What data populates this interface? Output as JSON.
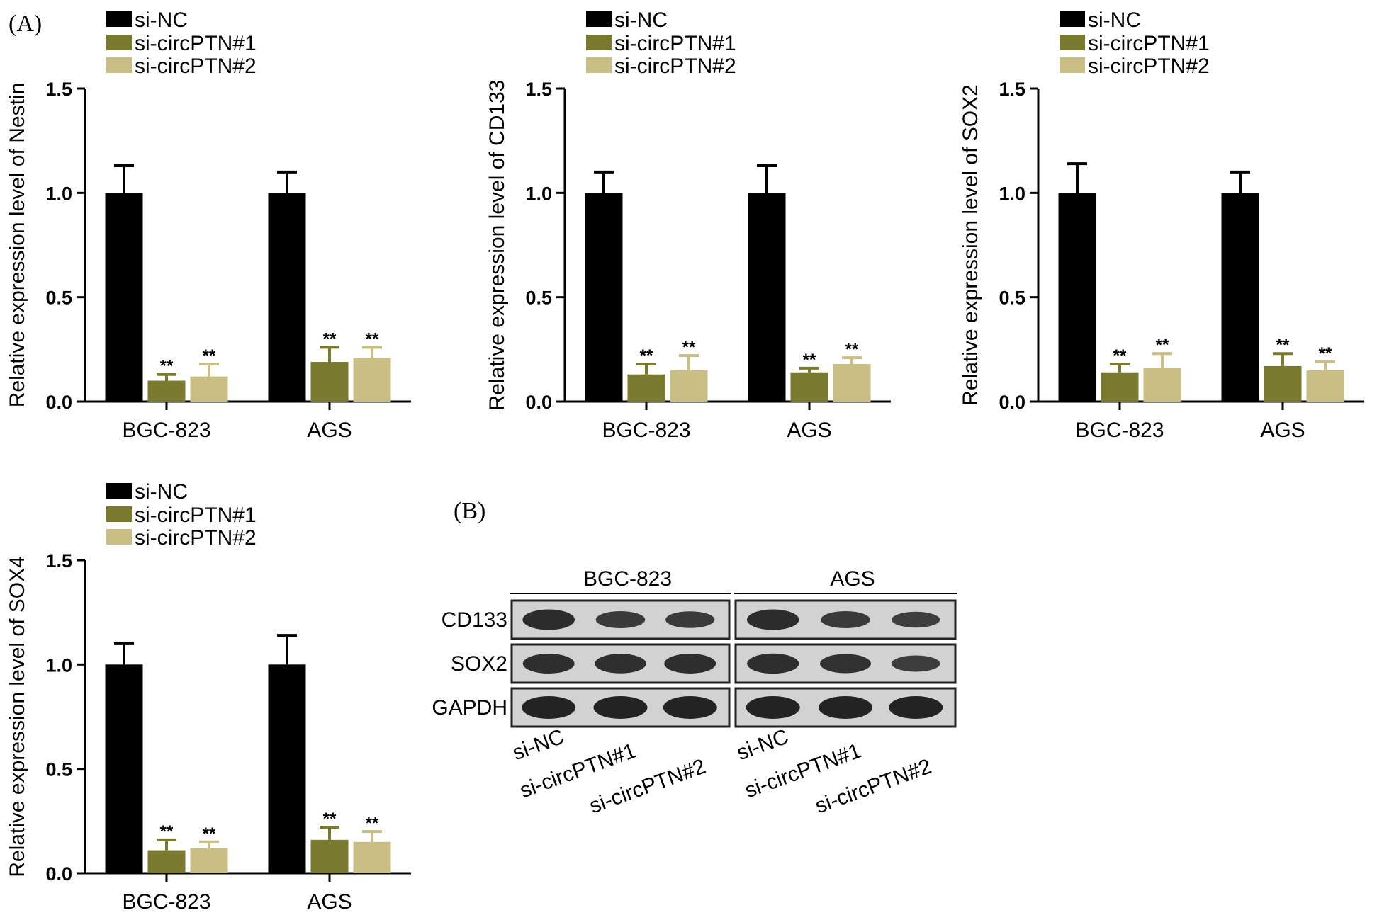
{
  "panel_a_label": "(A)",
  "panel_b_label": "(B)",
  "colors": {
    "si_nc": "#000000",
    "si_circ1": "#7a7a2e",
    "si_circ2": "#c9bf84"
  },
  "chart_data": [
    {
      "type": "bar",
      "title": "",
      "xlabel": "",
      "ylabel": "Relative expression level of Nestin",
      "ylim": [
        0,
        1.5
      ],
      "yticks": [
        "0.0",
        "0.5",
        "1.0",
        "1.5"
      ],
      "categories": [
        "BGC-823",
        "AGS"
      ],
      "legend": [
        "si-NC",
        "si-circPTN#1",
        "si-circPTN#2"
      ],
      "series": [
        {
          "name": "si-NC",
          "values": [
            1.0,
            1.0
          ],
          "errors": [
            0.13,
            0.1
          ],
          "sig": [
            "",
            ""
          ]
        },
        {
          "name": "si-circPTN#1",
          "values": [
            0.1,
            0.19
          ],
          "errors": [
            0.03,
            0.07
          ],
          "sig": [
            "**",
            "**"
          ]
        },
        {
          "name": "si-circPTN#2",
          "values": [
            0.12,
            0.21
          ],
          "errors": [
            0.06,
            0.05
          ],
          "sig": [
            "**",
            "**"
          ]
        }
      ]
    },
    {
      "type": "bar",
      "title": "",
      "xlabel": "",
      "ylabel": "Relative expression level of CD133",
      "ylim": [
        0,
        1.5
      ],
      "yticks": [
        "0.0",
        "0.5",
        "1.0",
        "1.5"
      ],
      "categories": [
        "BGC-823",
        "AGS"
      ],
      "legend": [
        "si-NC",
        "si-circPTN#1",
        "si-circPTN#2"
      ],
      "series": [
        {
          "name": "si-NC",
          "values": [
            1.0,
            1.0
          ],
          "errors": [
            0.1,
            0.13
          ],
          "sig": [
            "",
            ""
          ]
        },
        {
          "name": "si-circPTN#1",
          "values": [
            0.13,
            0.14
          ],
          "errors": [
            0.05,
            0.02
          ],
          "sig": [
            "**",
            "**"
          ]
        },
        {
          "name": "si-circPTN#2",
          "values": [
            0.15,
            0.18
          ],
          "errors": [
            0.07,
            0.03
          ],
          "sig": [
            "**",
            "**"
          ]
        }
      ]
    },
    {
      "type": "bar",
      "title": "",
      "xlabel": "",
      "ylabel": "Relative expression level of SOX2",
      "ylim": [
        0,
        1.5
      ],
      "yticks": [
        "0.0",
        "0.5",
        "1.0",
        "1.5"
      ],
      "categories": [
        "BGC-823",
        "AGS"
      ],
      "legend": [
        "si-NC",
        "si-circPTN#1",
        "si-circPTN#2"
      ],
      "series": [
        {
          "name": "si-NC",
          "values": [
            1.0,
            1.0
          ],
          "errors": [
            0.14,
            0.1
          ],
          "sig": [
            "",
            ""
          ]
        },
        {
          "name": "si-circPTN#1",
          "values": [
            0.14,
            0.17
          ],
          "errors": [
            0.04,
            0.06
          ],
          "sig": [
            "**",
            "**"
          ]
        },
        {
          "name": "si-circPTN#2",
          "values": [
            0.16,
            0.15
          ],
          "errors": [
            0.07,
            0.04
          ],
          "sig": [
            "**",
            "**"
          ]
        }
      ]
    },
    {
      "type": "bar",
      "title": "",
      "xlabel": "",
      "ylabel": "Relative expression level of SOX4",
      "ylim": [
        0,
        1.5
      ],
      "yticks": [
        "0.0",
        "0.5",
        "1.0",
        "1.5"
      ],
      "categories": [
        "BGC-823",
        "AGS"
      ],
      "legend": [
        "si-NC",
        "si-circPTN#1",
        "si-circPTN#2"
      ],
      "series": [
        {
          "name": "si-NC",
          "values": [
            1.0,
            1.0
          ],
          "errors": [
            0.1,
            0.14
          ],
          "sig": [
            "",
            ""
          ]
        },
        {
          "name": "si-circPTN#1",
          "values": [
            0.11,
            0.16
          ],
          "errors": [
            0.05,
            0.06
          ],
          "sig": [
            "**",
            "**"
          ]
        },
        {
          "name": "si-circPTN#2",
          "values": [
            0.12,
            0.15
          ],
          "errors": [
            0.03,
            0.05
          ],
          "sig": [
            "**",
            "**"
          ]
        }
      ]
    }
  ],
  "western_blot": {
    "groups": [
      "BGC-823",
      "AGS"
    ],
    "rows": [
      "CD133",
      "SOX2",
      "GAPDH"
    ],
    "lanes": [
      "si-NC",
      "si-circPTN#1",
      "si-circPTN#2"
    ],
    "band_intensity": [
      [
        [
          0.85,
          0.6,
          0.58
        ],
        [
          0.85,
          0.6,
          0.52
        ]
      ],
      [
        [
          0.8,
          0.78,
          0.8
        ],
        [
          0.82,
          0.75,
          0.55
        ]
      ],
      [
        [
          1.0,
          1.0,
          1.0
        ],
        [
          1.0,
          1.0,
          1.0
        ]
      ]
    ]
  }
}
